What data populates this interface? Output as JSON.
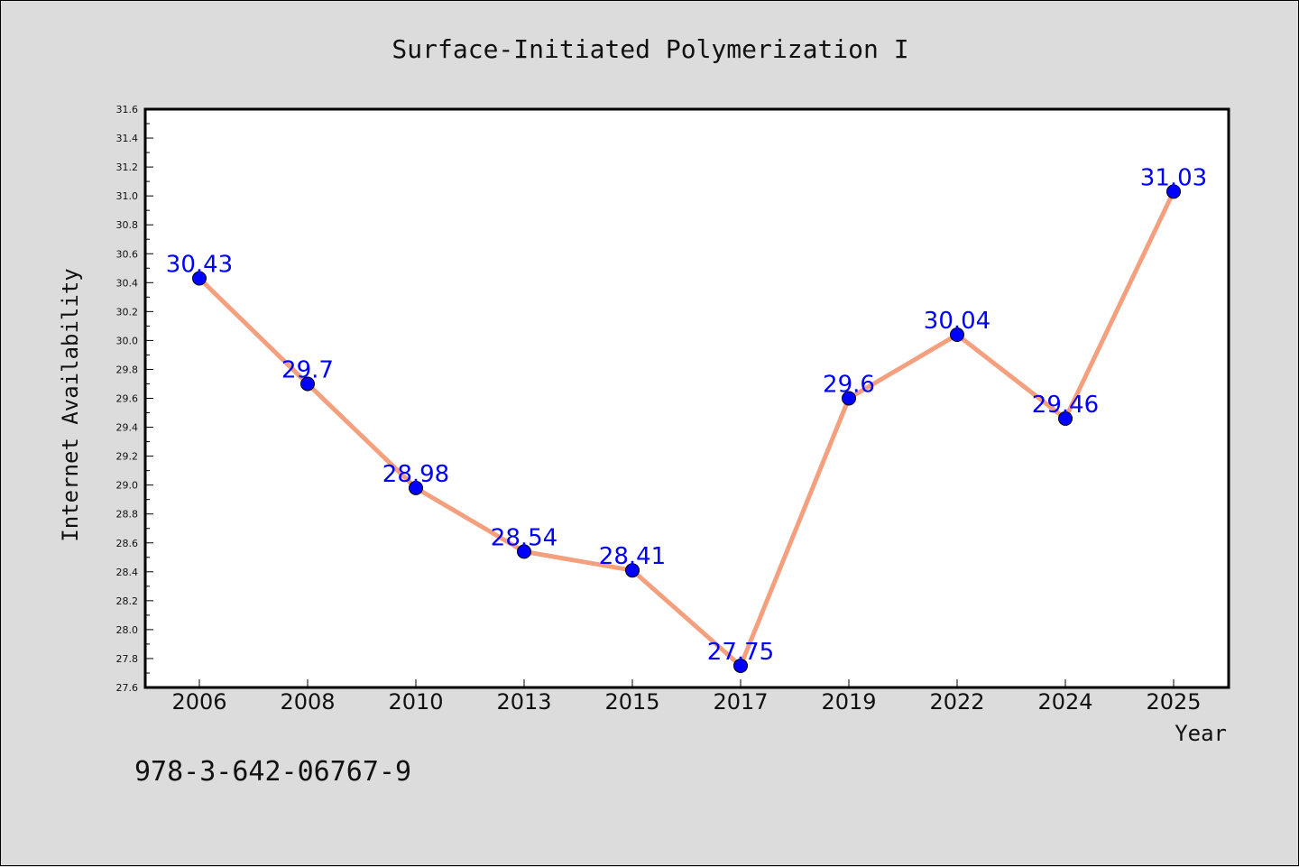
{
  "figure": {
    "footer_id": "978-3-642-06767-9"
  },
  "colors": {
    "background": "#dcdcdc",
    "plot_background": "#ffffff",
    "line": "#f4a07e",
    "marker": "#0000ff",
    "data_label": "#0000ff"
  },
  "chart_data": {
    "type": "line",
    "title": "Surface-Initiated Polymerization I",
    "xlabel": "Year",
    "ylabel": "Internet Availability",
    "categories": [
      "2006",
      "2008",
      "2010",
      "2013",
      "2015",
      "2017",
      "2019",
      "2022",
      "2024",
      "2025"
    ],
    "series": [
      {
        "values": [
          30.43,
          29.7,
          28.98,
          28.54,
          28.41,
          27.75,
          29.6,
          30.04,
          29.46,
          31.03
        ],
        "data_labels": [
          "30.43",
          "29.7",
          "28.98",
          "28.54",
          "28.41",
          "27.75",
          "29.6",
          "30.04",
          "29.46",
          "31.03"
        ]
      }
    ],
    "ylim": [
      27.6,
      31.6
    ],
    "y_ticks": [
      "27.6",
      "27.8",
      "28.0",
      "28.2",
      "28.4",
      "28.6",
      "28.8",
      "29.0",
      "29.2",
      "29.4",
      "29.6",
      "29.8",
      "30.0",
      "30.2",
      "30.4",
      "30.6",
      "30.8",
      "31.0",
      "31.2",
      "31.4",
      "31.6"
    ],
    "grid": false,
    "legend": "none"
  }
}
